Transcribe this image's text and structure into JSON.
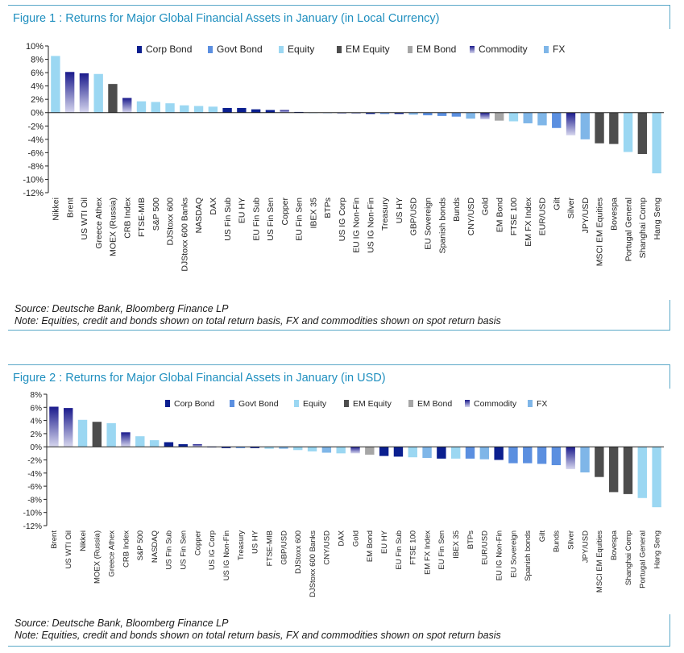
{
  "figure1": {
    "title": "Figure 1 : Returns for Major Global Financial Assets in January (in Local Currency)",
    "source": "Source: Deutsche Bank, Bloomberg Finance LP",
    "note": "Note: Equities, credit and bonds shown on total return basis, FX and commodities shown on spot return basis"
  },
  "figure2": {
    "title": "Figure 2 : Returns for Major Global Financial Assets in January (in USD)",
    "source": "Source: Deutsche Bank, Bloomberg Finance LP",
    "note": "Note: Equities, credit and bonds shown on total return basis, FX and commodities shown on spot return basis"
  },
  "colors": {
    "Corp Bond": "#0b1f8f",
    "Govt Bond": "#5b8fe0",
    "Equity": "#9bd7f2",
    "EM Equity": "#4d4d4d",
    "EM Bond": "#a6a6a6",
    "Commodity": "#3a3aa8",
    "FX": "#7fb6e8"
  },
  "chart_data": [
    {
      "type": "bar",
      "title": "Figure 1 : Returns for Major Global Financial Assets in January (in Local Currency)",
      "ylim": [
        -12,
        10
      ],
      "yticks": [
        10,
        8,
        6,
        4,
        2,
        0,
        -2,
        -4,
        -6,
        -8,
        -10,
        -12
      ],
      "tick_suffix": "%",
      "legend": [
        "Corp Bond",
        "Govt Bond",
        "Equity",
        "EM Equity",
        "EM Bond",
        "Commodity",
        "FX"
      ],
      "legend_position": "top-center",
      "categories": [
        "Nikkei",
        "Brent",
        "US WTI Oil",
        "Greece Athex",
        "MOEX (Russia)",
        "CRB Index",
        "FTSE-MIB",
        "S&P 500",
        "DJStoxx 600",
        "DJStoxx 600 Banks",
        "NASDAQ",
        "DAX",
        "US Fin Sub",
        "EU HY",
        "EU Fin Sub",
        "US Fin Sen",
        "Copper",
        "EU Fin Sen",
        "IBEX 35",
        "BTPs",
        "US IG Corp",
        "EU IG Non-Fin",
        "US IG Non-Fin",
        "Treasury",
        "US HY",
        "GBP/USD",
        "EU Sovereign",
        "Spanish bonds",
        "Bunds",
        "CNY/USD",
        "Gold",
        "EM Bond",
        "FTSE 100",
        "EM FX Index",
        "EUR/USD",
        "Gilt",
        "Silver",
        "JPY/USD",
        "MSCI EM Equities",
        "Bovespa",
        "Portugal General",
        "Shanghai Comp",
        "Hang Seng"
      ],
      "values": [
        8.5,
        6.1,
        5.9,
        5.8,
        4.3,
        2.2,
        1.7,
        1.6,
        1.4,
        1.1,
        1.0,
        0.9,
        0.7,
        0.7,
        0.5,
        0.4,
        0.4,
        0.1,
        0.0,
        0.0,
        -0.1,
        -0.1,
        -0.2,
        -0.2,
        -0.2,
        -0.3,
        -0.4,
        -0.5,
        -0.6,
        -0.9,
        -1.0,
        -1.2,
        -1.3,
        -1.6,
        -1.9,
        -2.3,
        -3.4,
        -4.0,
        -4.6,
        -4.7,
        -5.9,
        -6.2,
        -9.1
      ],
      "classes": [
        "Equity",
        "Commodity",
        "Commodity",
        "Equity",
        "EM Equity",
        "Commodity",
        "Equity",
        "Equity",
        "Equity",
        "Equity",
        "Equity",
        "Equity",
        "Corp Bond",
        "Corp Bond",
        "Corp Bond",
        "Corp Bond",
        "Commodity",
        "Corp Bond",
        "Equity",
        "Govt Bond",
        "Corp Bond",
        "Corp Bond",
        "Corp Bond",
        "Govt Bond",
        "Corp Bond",
        "FX",
        "Govt Bond",
        "Govt Bond",
        "Govt Bond",
        "FX",
        "Commodity",
        "EM Bond",
        "Equity",
        "FX",
        "FX",
        "Govt Bond",
        "Commodity",
        "FX",
        "EM Equity",
        "EM Equity",
        "Equity",
        "EM Equity",
        "Equity"
      ]
    },
    {
      "type": "bar",
      "title": "Figure 2 : Returns for Major Global Financial Assets in January (in USD)",
      "ylim": [
        -12,
        8
      ],
      "yticks": [
        8,
        6,
        4,
        2,
        0,
        -2,
        -4,
        -6,
        -8,
        -10,
        -12
      ],
      "tick_suffix": "%",
      "legend": [
        "Corp Bond",
        "Govt Bond",
        "Equity",
        "EM Equity",
        "EM Bond",
        "Commodity",
        "FX"
      ],
      "legend_position": "top-center",
      "categories": [
        "Brent",
        "US WTI Oil",
        "Nikkei",
        "MOEX (Russia)",
        "Greece Athex",
        "CRB Index",
        "S&P 500",
        "NASDAQ",
        "US Fin Sub",
        "US Fin Sen",
        "Copper",
        "US IG Corp",
        "US IG Non-Fin",
        "Treasury",
        "US HY",
        "FTSE-MIB",
        "GBP/USD",
        "DJStoxx 600",
        "DJStoxx 600 Banks",
        "CNY/USD",
        "DAX",
        "Gold",
        "EM Bond",
        "EU HY",
        "EU Fin Sub",
        "FTSE 100",
        "EM FX Index",
        "EU Fin Sen",
        "IBEX 35",
        "BTPs",
        "EUR/USD",
        "EU IG Non-Fin",
        "EU Sovereign",
        "Spanish bonds",
        "Gilt",
        "Bunds",
        "Silver",
        "JPY/USD",
        "MSCI EM Equities",
        "Bovespa",
        "Shanghai Comp",
        "Portugal General",
        "Hang Seng"
      ],
      "values": [
        6.1,
        5.9,
        4.1,
        3.8,
        3.6,
        2.2,
        1.6,
        1.0,
        0.7,
        0.4,
        0.4,
        -0.1,
        -0.2,
        -0.2,
        -0.2,
        -0.3,
        -0.3,
        -0.5,
        -0.7,
        -0.9,
        -1.0,
        -1.0,
        -1.2,
        -1.4,
        -1.5,
        -1.6,
        -1.7,
        -1.8,
        -1.8,
        -1.8,
        -1.9,
        -2.0,
        -2.5,
        -2.5,
        -2.6,
        -2.8,
        -3.4,
        -3.9,
        -4.6,
        -6.9,
        -7.2,
        -7.8,
        -9.2
      ],
      "classes": [
        "Commodity",
        "Commodity",
        "Equity",
        "EM Equity",
        "Equity",
        "Commodity",
        "Equity",
        "Equity",
        "Corp Bond",
        "Corp Bond",
        "Commodity",
        "Corp Bond",
        "Corp Bond",
        "Govt Bond",
        "Corp Bond",
        "Equity",
        "FX",
        "Equity",
        "Equity",
        "FX",
        "Equity",
        "Commodity",
        "EM Bond",
        "Corp Bond",
        "Corp Bond",
        "Equity",
        "FX",
        "Corp Bond",
        "Equity",
        "Govt Bond",
        "FX",
        "Corp Bond",
        "Govt Bond",
        "Govt Bond",
        "Govt Bond",
        "Govt Bond",
        "Commodity",
        "FX",
        "EM Equity",
        "EM Equity",
        "EM Equity",
        "Equity",
        "Equity"
      ]
    }
  ]
}
